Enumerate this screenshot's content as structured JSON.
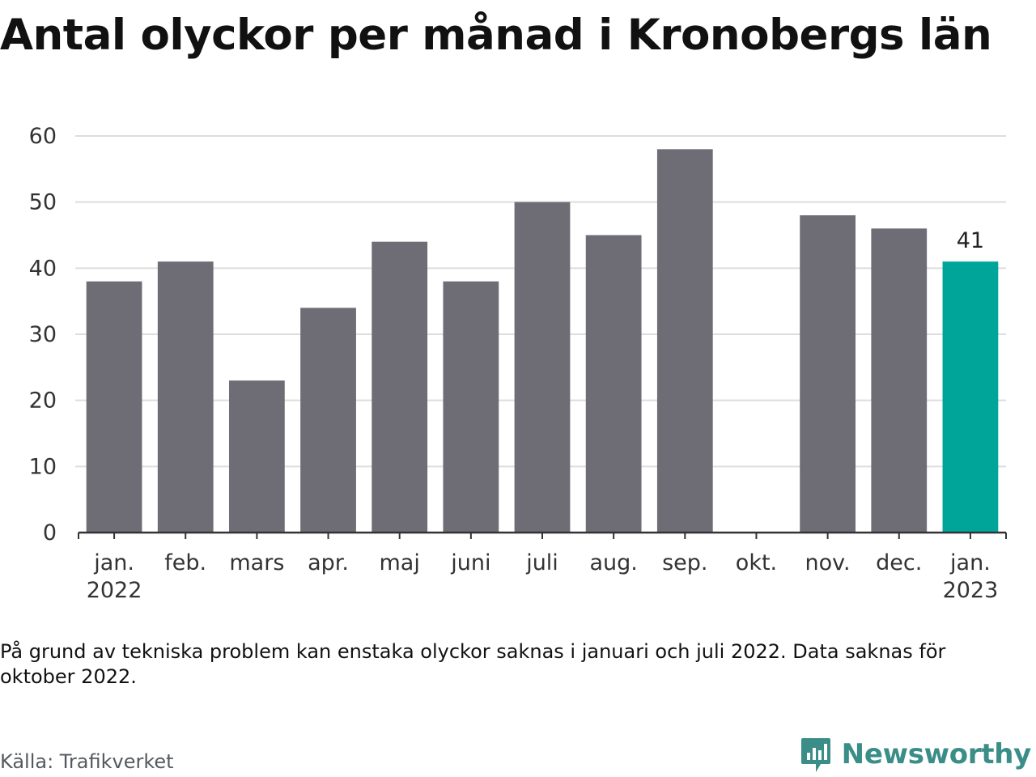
{
  "title": "Antal olyckor per månad i Kronobergs län",
  "note": "På grund av tekniska problem kan enstaka olyckor saknas i januari och juli 2022. Data saknas för oktober 2022.",
  "source": "Källa: Trafikverket",
  "brand": {
    "name": "Newsworthy",
    "icon": "newsworthy-logo-icon"
  },
  "colors": {
    "bar": "#6e6d75",
    "highlight": "#00a59a",
    "grid": "#dddddd",
    "axis": "#333333"
  },
  "chart_data": {
    "type": "bar",
    "categories": [
      [
        "jan.",
        "2022"
      ],
      [
        "feb."
      ],
      [
        "mars"
      ],
      [
        "apr."
      ],
      [
        "maj"
      ],
      [
        "juni"
      ],
      [
        "juli"
      ],
      [
        "aug."
      ],
      [
        "sep."
      ],
      [
        "okt."
      ],
      [
        "nov."
      ],
      [
        "dec."
      ],
      [
        "jan.",
        "2023"
      ]
    ],
    "values": [
      38,
      41,
      23,
      34,
      44,
      38,
      50,
      45,
      58,
      null,
      48,
      46,
      41
    ],
    "highlight_index": 12,
    "data_labels": [
      {
        "index": 12,
        "text": "41"
      }
    ],
    "yticks": [
      0,
      10,
      20,
      30,
      40,
      50,
      60
    ],
    "ylim": [
      0,
      60
    ],
    "grid": true,
    "xlabel": "",
    "ylabel": ""
  }
}
